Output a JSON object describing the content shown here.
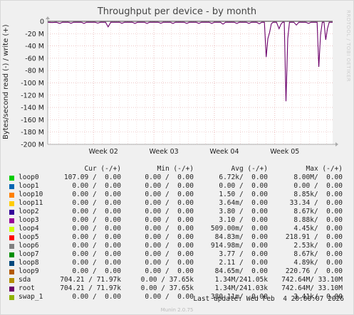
{
  "title": "Throughput per device - by month",
  "side_text": "RRDTOOL / TOBI OETIKER",
  "ylabel": "Bytes/second read (-) / write (+)",
  "footer": "Munin 2.0.75",
  "last_update": "Last update: Wed Feb  4 20:00:07 2026",
  "legend_headers": {
    "cur": "Cur (-/+)",
    "min": "Min (-/+)",
    "avg": "Avg (-/+)",
    "max": "Max (-/+)"
  },
  "legend": [
    {
      "name": "loop0",
      "color": "#00cc00",
      "cur": "107.09 /  0.00",
      "min": "0.00 /  0.00",
      "avg": "6.72k/  0.00",
      "max": "8.00M/  0.00"
    },
    {
      "name": "loop1",
      "color": "#0066b3",
      "cur": "0.00 /  0.00",
      "min": "0.00 /  0.00",
      "avg": "0.00 /  0.00",
      "max": "0.00 /  0.00"
    },
    {
      "name": "loop10",
      "color": "#ff8000",
      "cur": "0.00 /  0.00",
      "min": "0.00 /  0.00",
      "avg": "1.50 /  0.00",
      "max": "8.85k/  0.00"
    },
    {
      "name": "loop11",
      "color": "#ffcc00",
      "cur": "0.00 /  0.00",
      "min": "0.00 /  0.00",
      "avg": "3.64m/  0.00",
      "max": "33.34 /  0.00"
    },
    {
      "name": "loop2",
      "color": "#330099",
      "cur": "0.00 /  0.00",
      "min": "0.00 /  0.00",
      "avg": "3.80 /  0.00",
      "max": "8.67k/  0.00"
    },
    {
      "name": "loop3",
      "color": "#990099",
      "cur": "0.00 /  0.00",
      "min": "0.00 /  0.00",
      "avg": "3.10 /  0.00",
      "max": "8.88k/  0.00"
    },
    {
      "name": "loop4",
      "color": "#ccff00",
      "cur": "0.00 /  0.00",
      "min": "0.00 /  0.00",
      "avg": "509.00m/  0.00",
      "max": "4.45k/  0.00"
    },
    {
      "name": "loop5",
      "color": "#ff0000",
      "cur": "0.00 /  0.00",
      "min": "0.00 /  0.00",
      "avg": "84.83m/  0.00",
      "max": "218.91 /  0.00"
    },
    {
      "name": "loop6",
      "color": "#808080",
      "cur": "0.00 /  0.00",
      "min": "0.00 /  0.00",
      "avg": "914.98m/  0.00",
      "max": "2.53k/  0.00"
    },
    {
      "name": "loop7",
      "color": "#008f00",
      "cur": "0.00 /  0.00",
      "min": "0.00 /  0.00",
      "avg": "3.77 /  0.00",
      "max": "8.67k/  0.00"
    },
    {
      "name": "loop8",
      "color": "#00487d",
      "cur": "0.00 /  0.00",
      "min": "0.00 /  0.00",
      "avg": "2.11 /  0.00",
      "max": "4.89k/  0.00"
    },
    {
      "name": "loop9",
      "color": "#b35a00",
      "cur": "0.00 /  0.00",
      "min": "0.00 /  0.00",
      "avg": "84.65m/  0.00",
      "max": "220.76 /  0.00"
    },
    {
      "name": "sda",
      "color": "#b38f00",
      "cur": "704.21 / 71.97k",
      "min": "0.00 / 37.65k",
      "avg": "1.34M/241.05k",
      "max": "742.64M/ 33.10M"
    },
    {
      "name": "root",
      "color": "#6b006b",
      "cur": "704.21 / 71.97k",
      "min": "0.00 / 37.65k",
      "avg": "1.34M/241.03k",
      "max": "742.64M/ 33.10M"
    },
    {
      "name": "swap_1",
      "color": "#8fb300",
      "cur": "0.00 /  0.00",
      "min": "0.00 /  0.00",
      "avg": "380.11m/  0.00",
      "max": "3.41k/  0.00"
    }
  ],
  "chart_data": {
    "type": "line",
    "title": "Throughput per device - by month",
    "ylabel": "Bytes/second read (-) / write (+)",
    "y_unit": "M",
    "ylim": [
      -200,
      0
    ],
    "yticks": [
      0,
      -20,
      -40,
      -60,
      -80,
      -100,
      -120,
      -140,
      -160,
      -180,
      -200
    ],
    "ytick_labels": [
      "0",
      "-20 M",
      "-40 M",
      "-60 M",
      "-80 M",
      "-100 M",
      "-120 M",
      "-140 M",
      "-160 M",
      "-180 M",
      "-200 M"
    ],
    "xlim_days": [
      0,
      33
    ],
    "x_ticks": [
      {
        "label": "Week 02",
        "day": 5.3
      },
      {
        "label": "Week 03",
        "day": 12.3
      },
      {
        "label": "Week 04",
        "day": 19.3
      },
      {
        "label": "Week 05",
        "day": 26.3
      }
    ],
    "grid": true,
    "series": [
      {
        "name": "root",
        "color": "#6b006b",
        "points": [
          [
            0.0,
            -1.5
          ],
          [
            0.5,
            -2
          ],
          [
            1.0,
            -1.5
          ],
          [
            1.4,
            -3.5
          ],
          [
            1.7,
            -1.5
          ],
          [
            2.4,
            -1.5
          ],
          [
            2.7,
            -3.2
          ],
          [
            3.0,
            -1.5
          ],
          [
            3.9,
            -1.5
          ],
          [
            4.2,
            -3.5
          ],
          [
            4.5,
            -1.5
          ],
          [
            5.5,
            -1.5
          ],
          [
            5.8,
            -3.0
          ],
          [
            6.1,
            -1.5
          ],
          [
            6.7,
            -1.5
          ],
          [
            7.0,
            -9.0
          ],
          [
            7.3,
            -1.5
          ],
          [
            8.3,
            -1.5
          ],
          [
            8.6,
            -3.2
          ],
          [
            8.9,
            -1.5
          ],
          [
            9.8,
            -1.5
          ],
          [
            10.1,
            -3.5
          ],
          [
            10.4,
            -1.5
          ],
          [
            11.2,
            -1.5
          ],
          [
            11.5,
            -3.5
          ],
          [
            11.8,
            -1.5
          ],
          [
            12.8,
            -1.5
          ],
          [
            13.1,
            -3.2
          ],
          [
            13.4,
            -1.5
          ],
          [
            14.2,
            -1.5
          ],
          [
            14.5,
            -3.5
          ],
          [
            14.8,
            -1.5
          ],
          [
            15.8,
            -1.5
          ],
          [
            16.1,
            -3.5
          ],
          [
            16.4,
            -1.5
          ],
          [
            17.2,
            -1.5
          ],
          [
            17.5,
            -3.5
          ],
          [
            17.8,
            -1.5
          ],
          [
            18.7,
            -1.5
          ],
          [
            19.0,
            -3.5
          ],
          [
            19.3,
            -1.5
          ],
          [
            20.0,
            -1.5
          ],
          [
            20.3,
            -4.5
          ],
          [
            20.6,
            -1.5
          ],
          [
            21.6,
            -1.5
          ],
          [
            21.9,
            -3.5
          ],
          [
            22.2,
            -1.5
          ],
          [
            23.0,
            -1.5
          ],
          [
            23.3,
            -3.5
          ],
          [
            23.6,
            -1.5
          ],
          [
            24.2,
            -1.5
          ],
          [
            24.5,
            -4.0
          ],
          [
            24.8,
            -1.5
          ],
          [
            25.1,
            -1.5
          ],
          [
            25.3,
            -58
          ],
          [
            25.5,
            -28
          ],
          [
            25.7,
            -18
          ],
          [
            25.9,
            -4
          ],
          [
            26.1,
            -1.5
          ],
          [
            26.5,
            -1.5
          ],
          [
            26.8,
            -12
          ],
          [
            27.0,
            -5
          ],
          [
            27.2,
            -1.5
          ],
          [
            27.4,
            -1.5
          ],
          [
            27.6,
            -130
          ],
          [
            27.8,
            -28
          ],
          [
            28.0,
            -1.5
          ],
          [
            28.5,
            -1.5
          ],
          [
            28.8,
            -6
          ],
          [
            29.1,
            -1.5
          ],
          [
            29.9,
            -1.5
          ],
          [
            30.2,
            -3.5
          ],
          [
            30.5,
            -1.5
          ],
          [
            31.2,
            -1.5
          ],
          [
            31.4,
            -74
          ],
          [
            31.6,
            -22
          ],
          [
            31.8,
            -1.5
          ],
          [
            32.0,
            -1.5
          ],
          [
            32.2,
            -30
          ],
          [
            32.4,
            -12
          ],
          [
            32.6,
            -1.5
          ],
          [
            33.0,
            -1.5
          ]
        ]
      }
    ]
  }
}
